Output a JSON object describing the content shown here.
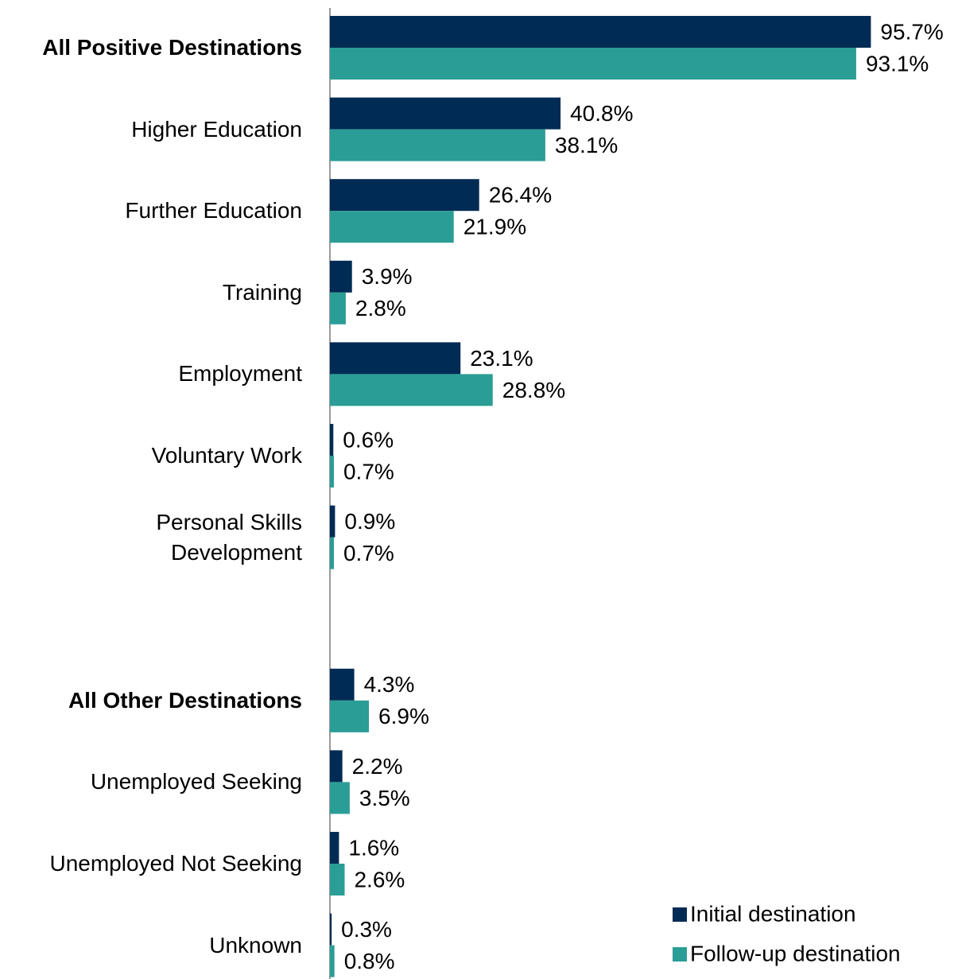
{
  "chart_data": {
    "type": "bar",
    "orientation": "horizontal",
    "categories": [
      "All Positive Destinations",
      "Higher Education",
      "Further Education",
      "Training",
      "Employment",
      "Voluntary Work",
      "Personal Skills\nDevelopment",
      null,
      "All Other Destinations",
      "Unemployed Seeking",
      "Unemployed Not Seeking",
      "Unknown"
    ],
    "series": [
      {
        "name": "Initial destination",
        "color": "#002b54",
        "values": [
          95.7,
          40.8,
          26.4,
          3.9,
          23.1,
          0.6,
          0.9,
          null,
          4.3,
          2.2,
          1.6,
          0.3
        ],
        "value_labels": [
          "95.7%",
          "40.8%",
          "26.4%",
          "3.9%",
          "23.1%",
          "0.6%",
          "0.9%",
          null,
          "4.3%",
          "2.2%",
          "1.6%",
          "0.3%"
        ]
      },
      {
        "name": "Follow-up destination",
        "color": "#2a9d96",
        "values": [
          93.1,
          38.1,
          21.9,
          2.8,
          28.8,
          0.7,
          0.7,
          null,
          6.9,
          3.5,
          2.6,
          0.8
        ],
        "value_labels": [
          "93.1%",
          "38.1%",
          "21.9%",
          "2.8%",
          "28.8%",
          "0.7%",
          "0.7%",
          null,
          "6.9%",
          "3.5%",
          "2.6%",
          "0.8%"
        ]
      }
    ],
    "xlim": [
      0,
      100
    ],
    "legend": "lower right"
  }
}
